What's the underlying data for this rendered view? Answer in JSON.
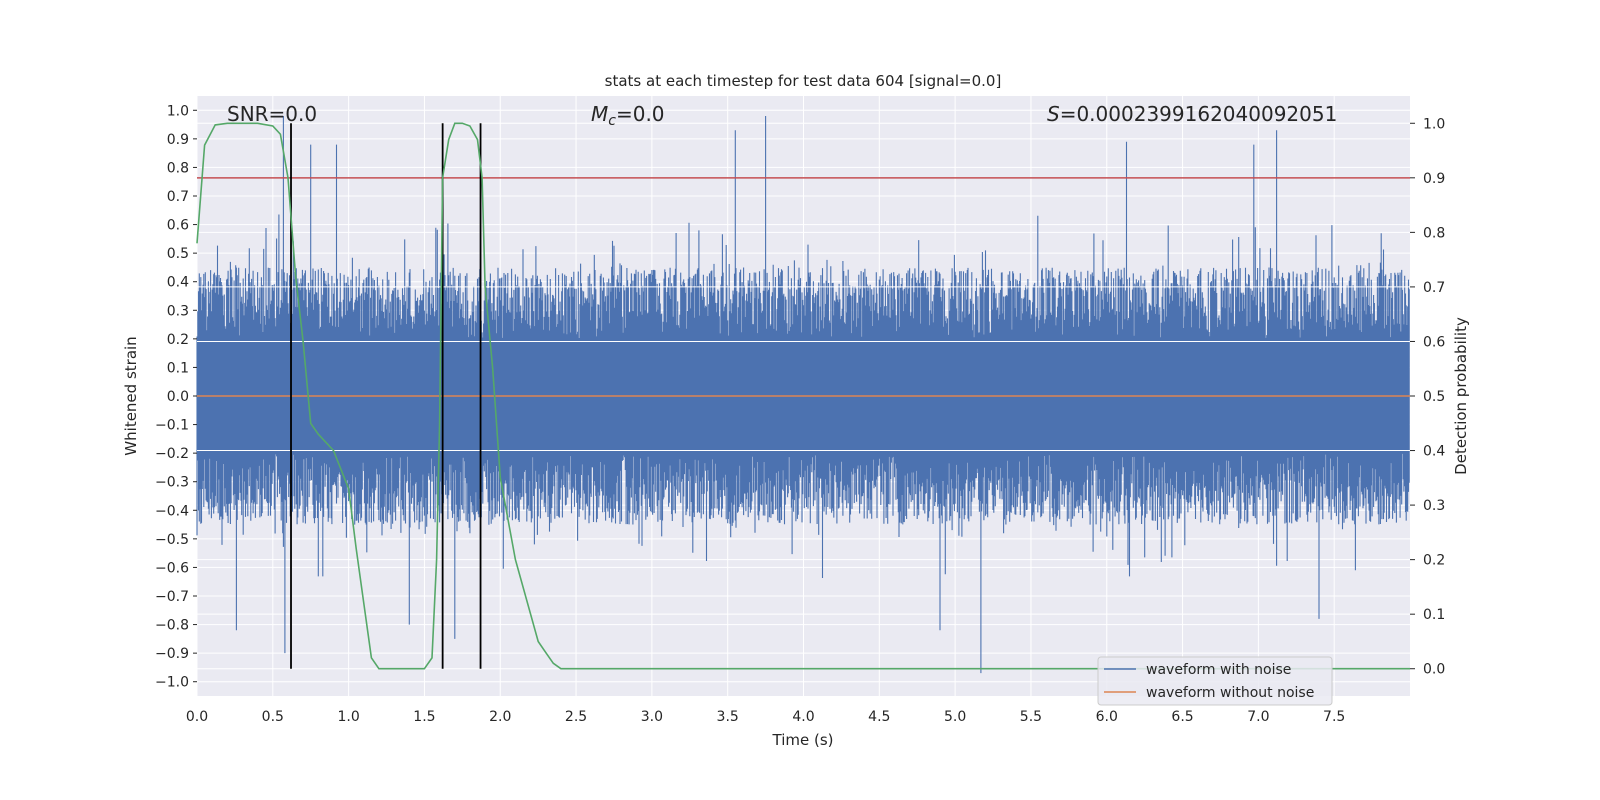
{
  "chart_data": {
    "type": "line",
    "title": "stats at each timestep for test data 604 [signal=0.0]",
    "xlabel": "Time (s)",
    "ylabel": "Whitened strain",
    "ylabel_right": "Detection probability",
    "xlim": [
      0.0,
      8.0
    ],
    "ylim": [
      -1.05,
      1.05
    ],
    "ylim_right": [
      -0.05,
      1.05
    ],
    "x_ticks": [
      "0.0",
      "0.5",
      "1.0",
      "1.5",
      "2.0",
      "2.5",
      "3.0",
      "3.5",
      "4.0",
      "4.5",
      "5.0",
      "5.5",
      "6.0",
      "6.5",
      "7.0",
      "7.5"
    ],
    "x_tick_values": [
      0.0,
      0.5,
      1.0,
      1.5,
      2.0,
      2.5,
      3.0,
      3.5,
      4.0,
      4.5,
      5.0,
      5.5,
      6.0,
      6.5,
      7.0,
      7.5
    ],
    "y_ticks": [
      "1.0",
      "0.9",
      "0.8",
      "0.7",
      "0.6",
      "0.5",
      "0.4",
      "0.3",
      "0.2",
      "0.1",
      "0.0",
      "−0.1",
      "−0.2",
      "−0.3",
      "−0.4",
      "−0.5",
      "−0.6",
      "−0.7",
      "−0.8",
      "−0.9",
      "−1.0"
    ],
    "y_tick_values": [
      1.0,
      0.9,
      0.8,
      0.7,
      0.6,
      0.5,
      0.4,
      0.3,
      0.2,
      0.1,
      0.0,
      -0.1,
      -0.2,
      -0.3,
      -0.4,
      -0.5,
      -0.6,
      -0.7,
      -0.8,
      -0.9,
      -1.0
    ],
    "y_right_ticks": [
      "1.0",
      "0.9",
      "0.8",
      "0.7",
      "0.6",
      "0.5",
      "0.4",
      "0.3",
      "0.2",
      "0.1",
      "0.0"
    ],
    "y_right_tick_values": [
      1.0,
      0.9,
      0.8,
      0.7,
      0.6,
      0.5,
      0.4,
      0.3,
      0.2,
      0.1,
      0.0
    ],
    "annotations": {
      "snr": "SNR=0.0",
      "mc_symbol": "M",
      "mc_subscript": "c",
      "mc_value": "=0.0",
      "s_symbol": "S",
      "s_value": "=0.0002399162040092051"
    },
    "threshold_probability": 0.9,
    "vertical_markers": [
      0.62,
      1.62,
      1.87
    ],
    "noise_envelope": {
      "upper_typical": 0.45,
      "lower_typical": -0.45,
      "peaks": [
        [
          0.57,
          0.98
        ],
        [
          0.75,
          0.88
        ],
        [
          0.92,
          0.88
        ],
        [
          3.55,
          0.93
        ],
        [
          3.75,
          0.98
        ],
        [
          6.13,
          0.89
        ],
        [
          6.97,
          0.88
        ],
        [
          7.12,
          0.93
        ]
      ],
      "troughs": [
        [
          0.26,
          -0.82
        ],
        [
          0.58,
          -0.9
        ],
        [
          1.4,
          -0.8
        ],
        [
          1.7,
          -0.85
        ],
        [
          4.9,
          -0.82
        ],
        [
          5.17,
          -0.97
        ],
        [
          7.4,
          -0.78
        ]
      ]
    },
    "series": [
      {
        "name": "waveform with noise",
        "color": "#4c72b0",
        "axis": "left",
        "kind": "noise"
      },
      {
        "name": "waveform without noise",
        "color": "#dd8452",
        "axis": "left",
        "x": [
          0.0,
          8.0
        ],
        "y": [
          0.0,
          0.0
        ]
      },
      {
        "name": "detection probability",
        "color": "#55a868",
        "axis": "right",
        "x": [
          0.0,
          0.05,
          0.12,
          0.2,
          0.3,
          0.4,
          0.5,
          0.55,
          0.6,
          0.65,
          0.7,
          0.75,
          0.8,
          0.9,
          1.0,
          1.05,
          1.1,
          1.15,
          1.2,
          1.3,
          1.4,
          1.5,
          1.55,
          1.58,
          1.6,
          1.62,
          1.66,
          1.7,
          1.75,
          1.8,
          1.85,
          1.88,
          1.9,
          1.95,
          2.0,
          2.1,
          2.2,
          2.25,
          2.3,
          2.35,
          2.4,
          8.0
        ],
        "y": [
          0.78,
          0.96,
          0.997,
          1.0,
          1.0,
          1.0,
          0.995,
          0.98,
          0.9,
          0.72,
          0.6,
          0.45,
          0.43,
          0.4,
          0.33,
          0.22,
          0.12,
          0.02,
          0.0,
          0.0,
          0.0,
          0.0,
          0.02,
          0.2,
          0.45,
          0.9,
          0.97,
          1.0,
          1.0,
          0.995,
          0.97,
          0.9,
          0.7,
          0.55,
          0.35,
          0.2,
          0.1,
          0.05,
          0.03,
          0.01,
          0.0,
          0.0
        ]
      }
    ],
    "threshold_line": {
      "color": "#c44e52"
    },
    "vertical_marker_color": "#000000",
    "legend": {
      "placement": "lower-right",
      "entries": [
        "waveform with noise",
        "waveform without noise"
      ]
    }
  }
}
